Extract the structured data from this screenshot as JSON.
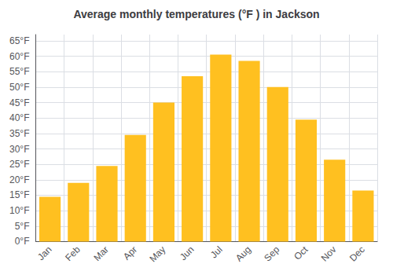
{
  "chart_data": {
    "type": "bar",
    "title": "Average monthly temperatures (°F ) in Jackson",
    "categories": [
      "Jan",
      "Feb",
      "Mar",
      "Apr",
      "May",
      "Jun",
      "Jul",
      "Aug",
      "Sep",
      "Oct",
      "Nov",
      "Dec"
    ],
    "values": [
      14.5,
      19.0,
      24.5,
      34.5,
      45.0,
      53.5,
      60.5,
      58.5,
      50.0,
      39.5,
      26.5,
      16.5
    ],
    "color": "#FFC020",
    "ylim": [
      0,
      67
    ],
    "yticks": [
      {
        "value": 0,
        "label": "0°F"
      },
      {
        "value": 5,
        "label": "5°F"
      },
      {
        "value": 10,
        "label": "10°F"
      },
      {
        "value": 15,
        "label": "15°F"
      },
      {
        "value": 20,
        "label": "20°F"
      },
      {
        "value": 25,
        "label": "25°F"
      },
      {
        "value": 30,
        "label": "30°F"
      },
      {
        "value": 35,
        "label": "35°F"
      },
      {
        "value": 40,
        "label": "40°F"
      },
      {
        "value": 45,
        "label": "45°F"
      },
      {
        "value": 50,
        "label": "50°F"
      },
      {
        "value": 55,
        "label": "55°F"
      },
      {
        "value": 60,
        "label": "60°F"
      },
      {
        "value": 65,
        "label": "65°F"
      }
    ],
    "grid": true
  }
}
